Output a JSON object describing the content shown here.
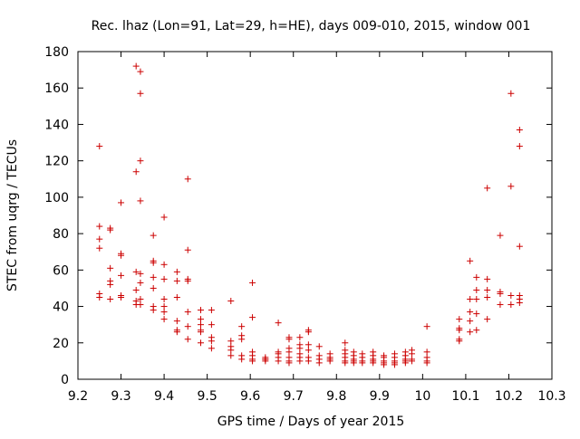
{
  "chart_data": {
    "type": "scatter",
    "title": "Rec. lhaz (Lon=91, Lat=29, h=HE), days 009-010, 2015, window 001",
    "xlabel": "GPS time / Days of year 2015",
    "ylabel": "STEC from uqrg / TECUs",
    "xlim": [
      9.2,
      10.3
    ],
    "ylim": [
      0,
      180
    ],
    "xticks": [
      "9.2",
      "9.3",
      "9.4",
      "9.5",
      "9.6",
      "9.7",
      "9.8",
      "9.9",
      "10",
      "10.1",
      "10.2",
      "10.3"
    ],
    "yticks": [
      "0",
      "20",
      "40",
      "60",
      "80",
      "100",
      "120",
      "140",
      "160",
      "180"
    ],
    "grid": false,
    "marker": "+",
    "marker_color": "#cc0000",
    "series": [
      {
        "name": "",
        "points": [
          [
            9.25,
            128
          ],
          [
            9.25,
            84
          ],
          [
            9.25,
            77
          ],
          [
            9.25,
            72
          ],
          [
            9.25,
            47
          ],
          [
            9.25,
            45
          ],
          [
            9.275,
            83
          ],
          [
            9.275,
            82
          ],
          [
            9.275,
            61
          ],
          [
            9.275,
            54
          ],
          [
            9.275,
            52
          ],
          [
            9.275,
            44
          ],
          [
            9.3,
            97
          ],
          [
            9.3,
            69
          ],
          [
            9.3,
            68
          ],
          [
            9.3,
            57
          ],
          [
            9.3,
            46
          ],
          [
            9.3,
            45
          ],
          [
            9.335,
            172
          ],
          [
            9.335,
            114
          ],
          [
            9.335,
            59
          ],
          [
            9.335,
            49
          ],
          [
            9.335,
            43
          ],
          [
            9.335,
            41
          ],
          [
            9.345,
            169
          ],
          [
            9.345,
            157
          ],
          [
            9.345,
            120
          ],
          [
            9.345,
            98
          ],
          [
            9.345,
            58
          ],
          [
            9.345,
            53
          ],
          [
            9.345,
            44
          ],
          [
            9.345,
            41
          ],
          [
            9.375,
            79
          ],
          [
            9.375,
            65
          ],
          [
            9.375,
            64
          ],
          [
            9.375,
            56
          ],
          [
            9.375,
            50
          ],
          [
            9.375,
            40
          ],
          [
            9.375,
            38
          ],
          [
            9.4,
            89
          ],
          [
            9.4,
            63
          ],
          [
            9.4,
            55
          ],
          [
            9.4,
            44
          ],
          [
            9.4,
            40
          ],
          [
            9.4,
            37
          ],
          [
            9.4,
            33
          ],
          [
            9.43,
            59
          ],
          [
            9.43,
            54
          ],
          [
            9.43,
            45
          ],
          [
            9.43,
            32
          ],
          [
            9.43,
            27
          ],
          [
            9.43,
            26
          ],
          [
            9.455,
            110
          ],
          [
            9.455,
            71
          ],
          [
            9.455,
            55
          ],
          [
            9.455,
            54
          ],
          [
            9.455,
            37
          ],
          [
            9.455,
            29
          ],
          [
            9.455,
            22
          ],
          [
            9.485,
            38
          ],
          [
            9.485,
            33
          ],
          [
            9.485,
            30
          ],
          [
            9.485,
            27
          ],
          [
            9.485,
            26
          ],
          [
            9.485,
            20
          ],
          [
            9.51,
            38
          ],
          [
            9.51,
            30
          ],
          [
            9.51,
            23
          ],
          [
            9.51,
            21
          ],
          [
            9.51,
            17
          ],
          [
            9.555,
            43
          ],
          [
            9.555,
            21
          ],
          [
            9.555,
            18
          ],
          [
            9.555,
            16
          ],
          [
            9.555,
            13
          ],
          [
            9.58,
            29
          ],
          [
            9.58,
            24
          ],
          [
            9.58,
            22
          ],
          [
            9.58,
            13
          ],
          [
            9.58,
            11
          ],
          [
            9.605,
            53
          ],
          [
            9.605,
            34
          ],
          [
            9.605,
            15
          ],
          [
            9.605,
            13
          ],
          [
            9.605,
            11
          ],
          [
            9.605,
            10
          ],
          [
            9.635,
            12
          ],
          [
            9.635,
            11
          ],
          [
            9.635,
            11
          ],
          [
            9.635,
            10
          ],
          [
            9.665,
            31
          ],
          [
            9.665,
            15
          ],
          [
            9.665,
            14
          ],
          [
            9.665,
            12
          ],
          [
            9.665,
            10
          ],
          [
            9.69,
            23
          ],
          [
            9.69,
            22
          ],
          [
            9.69,
            17
          ],
          [
            9.69,
            15
          ],
          [
            9.69,
            12
          ],
          [
            9.69,
            10
          ],
          [
            9.69,
            9
          ],
          [
            9.715,
            23
          ],
          [
            9.715,
            19
          ],
          [
            9.715,
            17
          ],
          [
            9.715,
            14
          ],
          [
            9.715,
            12
          ],
          [
            9.715,
            10
          ],
          [
            9.735,
            27
          ],
          [
            9.735,
            26
          ],
          [
            9.735,
            19
          ],
          [
            9.735,
            16
          ],
          [
            9.735,
            12
          ],
          [
            9.735,
            10
          ],
          [
            9.76,
            18
          ],
          [
            9.76,
            13
          ],
          [
            9.76,
            11
          ],
          [
            9.76,
            9
          ],
          [
            9.785,
            14
          ],
          [
            9.785,
            12
          ],
          [
            9.785,
            11
          ],
          [
            9.785,
            10
          ],
          [
            9.82,
            20
          ],
          [
            9.82,
            16
          ],
          [
            9.82,
            14
          ],
          [
            9.82,
            12
          ],
          [
            9.82,
            10
          ],
          [
            9.82,
            9
          ],
          [
            9.84,
            15
          ],
          [
            9.84,
            13
          ],
          [
            9.84,
            11
          ],
          [
            9.84,
            10
          ],
          [
            9.84,
            9
          ],
          [
            9.86,
            14
          ],
          [
            9.86,
            12
          ],
          [
            9.86,
            10
          ],
          [
            9.86,
            9
          ],
          [
            9.885,
            15
          ],
          [
            9.885,
            13
          ],
          [
            9.885,
            11
          ],
          [
            9.885,
            10
          ],
          [
            9.885,
            9
          ],
          [
            9.91,
            13
          ],
          [
            9.91,
            12
          ],
          [
            9.91,
            10
          ],
          [
            9.91,
            9
          ],
          [
            9.91,
            8
          ],
          [
            9.935,
            14
          ],
          [
            9.935,
            12
          ],
          [
            9.935,
            10
          ],
          [
            9.935,
            9
          ],
          [
            9.935,
            8
          ],
          [
            9.96,
            15
          ],
          [
            9.96,
            13
          ],
          [
            9.96,
            11
          ],
          [
            9.96,
            10
          ],
          [
            9.96,
            9
          ],
          [
            9.975,
            16
          ],
          [
            9.975,
            14
          ],
          [
            9.975,
            11
          ],
          [
            9.975,
            10
          ],
          [
            10.01,
            29
          ],
          [
            10.01,
            15
          ],
          [
            10.01,
            12
          ],
          [
            10.01,
            10
          ],
          [
            10.01,
            9
          ],
          [
            10.085,
            33
          ],
          [
            10.085,
            28
          ],
          [
            10.085,
            27
          ],
          [
            10.085,
            22
          ],
          [
            10.085,
            21
          ],
          [
            10.11,
            65
          ],
          [
            10.11,
            44
          ],
          [
            10.11,
            37
          ],
          [
            10.11,
            32
          ],
          [
            10.11,
            26
          ],
          [
            10.125,
            56
          ],
          [
            10.125,
            49
          ],
          [
            10.125,
            44
          ],
          [
            10.125,
            36
          ],
          [
            10.125,
            27
          ],
          [
            10.15,
            105
          ],
          [
            10.15,
            55
          ],
          [
            10.15,
            49
          ],
          [
            10.15,
            45
          ],
          [
            10.15,
            33
          ],
          [
            10.18,
            79
          ],
          [
            10.18,
            48
          ],
          [
            10.18,
            47
          ],
          [
            10.18,
            41
          ],
          [
            10.205,
            157
          ],
          [
            10.205,
            106
          ],
          [
            10.205,
            46
          ],
          [
            10.205,
            41
          ],
          [
            10.225,
            137
          ],
          [
            10.225,
            128
          ],
          [
            10.225,
            73
          ],
          [
            10.225,
            46
          ],
          [
            10.225,
            44
          ],
          [
            10.225,
            42
          ]
        ]
      }
    ]
  }
}
